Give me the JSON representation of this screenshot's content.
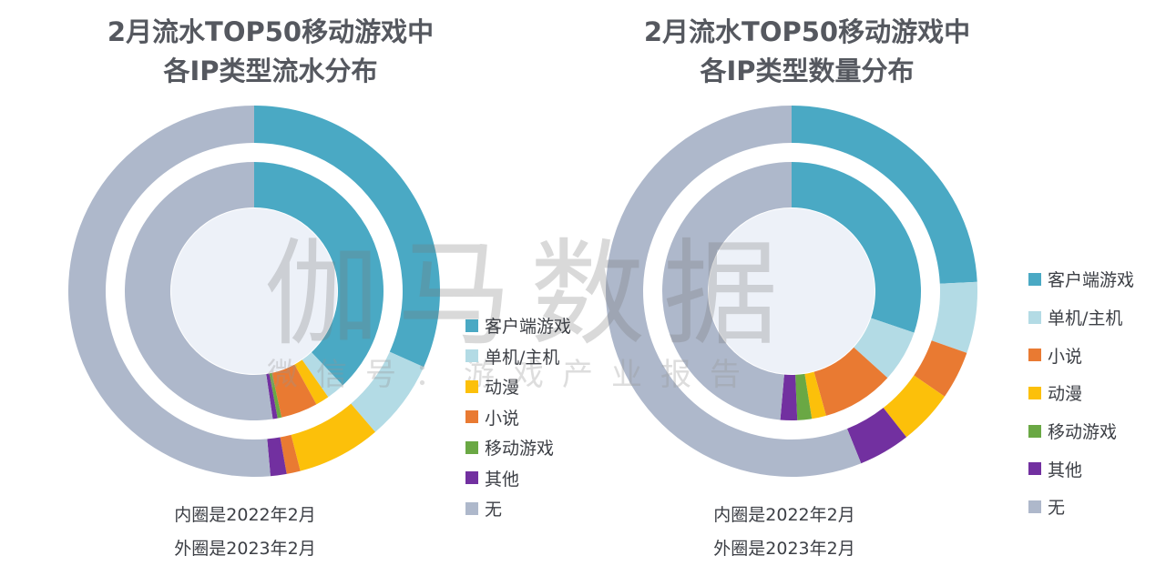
{
  "watermark": {
    "main": "伽马数据",
    "sub": "微信号：游戏产业报告"
  },
  "colors": {
    "客户端游戏": "#4aa9c4",
    "单机/主机": "#b3dbe5",
    "动漫": "#fcc00a",
    "小说": "#e97a32",
    "移动游戏": "#6aa844",
    "其他": "#7230a0",
    "无": "#aeb8cb"
  },
  "chart_data": [
    {
      "type": "donut",
      "title": [
        "2月流水TOP50移动游戏中",
        "各IP类型流水分布"
      ],
      "legend": [
        "客户端游戏",
        "单机/主机",
        "动漫",
        "小说",
        "移动游戏",
        "其他",
        "无"
      ],
      "series": [
        {
          "name": "外圈是2023年2月",
          "ring": "outer",
          "categories": [
            "客户端游戏",
            "单机/主机",
            "动漫",
            "小说",
            "其他",
            "无"
          ],
          "values": [
            31.7,
            7.0,
            7.3,
            1.2,
            1.4,
            51.4
          ]
        },
        {
          "name": "内圈是2022年2月",
          "ring": "inner",
          "categories": [
            "客户端游戏",
            "单机/主机",
            "动漫",
            "小说",
            "移动游戏",
            "其他",
            "无"
          ],
          "values": [
            38.0,
            2.3,
            1.7,
            4.6,
            0.5,
            0.6,
            52.3
          ]
        }
      ],
      "notes": [
        "内圈是2022年2月",
        "外圈是2023年2月"
      ]
    },
    {
      "type": "donut",
      "title": [
        "2月流水TOP50移动游戏中",
        "各IP类型数量分布"
      ],
      "legend": [
        "客户端游戏",
        "单机/主机",
        "小说",
        "动漫",
        "移动游戏",
        "其他",
        "无"
      ],
      "series": [
        {
          "name": "外圈是2023年2月",
          "ring": "outer",
          "categories": [
            "客户端游戏",
            "单机/主机",
            "小说",
            "动漫",
            "其他",
            "无"
          ],
          "values": [
            24.2,
            6.2,
            4.2,
            4.8,
            4.5,
            56.1
          ]
        },
        {
          "name": "内圈是2022年2月",
          "ring": "inner",
          "categories": [
            "客户端游戏",
            "单机/主机",
            "小说",
            "动漫",
            "移动游戏",
            "其他",
            "无"
          ],
          "values": [
            30.2,
            6.5,
            9.0,
            1.8,
            1.8,
            2.1,
            48.6
          ]
        }
      ],
      "notes": [
        "内圈是2022年2月",
        "外圈是2023年2月"
      ]
    }
  ]
}
